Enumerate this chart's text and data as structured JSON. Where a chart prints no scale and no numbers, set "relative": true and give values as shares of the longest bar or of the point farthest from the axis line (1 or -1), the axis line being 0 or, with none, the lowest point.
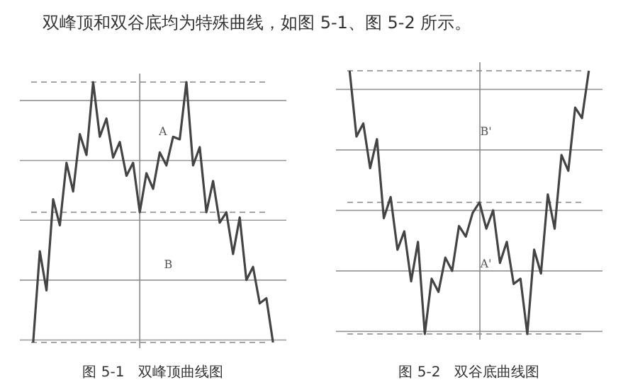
{
  "chart_data": [
    {
      "type": "line",
      "relative": true,
      "title": "双峰顶和双谷底均为特殊曲线，如图 5-1、图 5-2 所示。",
      "xlabel": "图 5-1　双峰顶曲线图",
      "annotations": [
        "A",
        "B"
      ],
      "grid": "y",
      "color": "#444444",
      "categories": [
        null,
        null,
        null,
        null,
        null,
        null,
        null,
        null,
        null,
        null,
        null,
        null,
        null,
        null,
        null,
        null,
        null,
        null,
        null,
        null,
        null,
        null,
        null,
        null,
        null,
        null,
        null,
        null,
        null,
        null,
        null,
        null,
        null,
        null,
        null,
        null,
        null
      ],
      "values": [
        0,
        0.35,
        0.2,
        0.55,
        0.45,
        0.69,
        0.58,
        0.8,
        0.72,
        1,
        0.79,
        0.86,
        0.71,
        0.77,
        0.64,
        0.69,
        0.5,
        0.65,
        0.59,
        0.73,
        0.68,
        0.79,
        0.78,
        1,
        0.68,
        0.75,
        0.5,
        0.62,
        0.46,
        0.5,
        0.34,
        0.48,
        0.24,
        0.29,
        0.15,
        0.17,
        0
      ],
      "ref_lines": [
        {
          "axis": "y",
          "value": 1,
          "line_style": "dashed"
        },
        {
          "axis": "y",
          "value": 0.5,
          "line_style": "dashed"
        },
        {
          "axis": "y",
          "value": 0,
          "line_style": "dashed"
        }
      ]
    },
    {
      "type": "line",
      "relative": true,
      "xlabel": "图 5-2　双谷底曲线图",
      "annotations": [
        "B'",
        "A'"
      ],
      "grid": "y",
      "color": "#444444",
      "categories": [
        null,
        null,
        null,
        null,
        null,
        null,
        null,
        null,
        null,
        null,
        null,
        null,
        null,
        null,
        null,
        null,
        null,
        null,
        null,
        null,
        null,
        null,
        null,
        null,
        null,
        null,
        null,
        null,
        null,
        null,
        null,
        null,
        null,
        null,
        null,
        null
      ],
      "values": [
        1,
        0.75,
        0.8,
        0.63,
        0.74,
        0.44,
        0.52,
        0.32,
        0.39,
        0.2,
        0.35,
        0,
        0.21,
        0.16,
        0.29,
        0.24,
        0.41,
        0.37,
        0.46,
        0.5,
        0.4,
        0.47,
        0.27,
        0.35,
        0.19,
        0.21,
        0,
        0.32,
        0.23,
        0.53,
        0.4,
        0.68,
        0.62,
        0.86,
        0.82,
        1
      ],
      "ref_lines": [
        {
          "axis": "y",
          "value": 1,
          "line_style": "dashed"
        },
        {
          "axis": "y",
          "value": 0.5,
          "line_style": "dashed"
        },
        {
          "axis": "y",
          "value": 0,
          "line_style": "dashed"
        }
      ]
    }
  ]
}
